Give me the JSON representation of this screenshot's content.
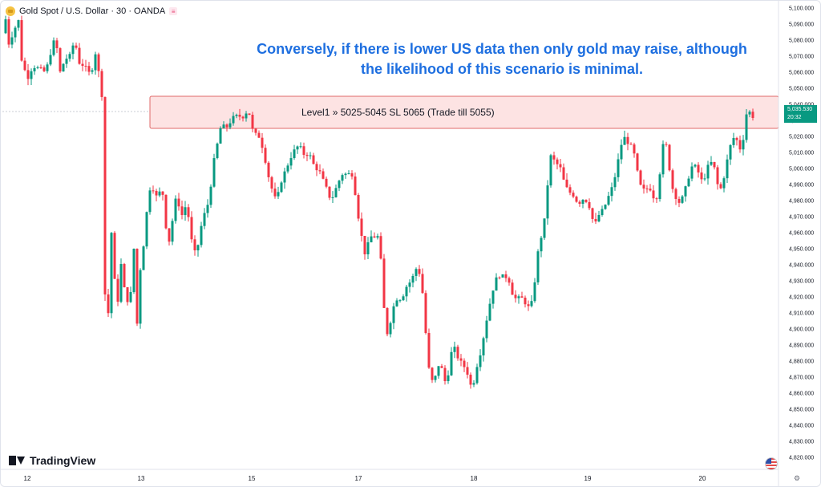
{
  "header": {
    "symbol_title": "Gold Spot / U.S. Dollar · 30 · OANDA"
  },
  "annotation": {
    "line1": "Conversely, if there is lower US data then only gold may raise, although",
    "line2": "the likelihood of this scenario is minimal."
  },
  "zone": {
    "label": "Level1 » 5025-5045 SL 5065 (Trade till 5055)",
    "low": 5025,
    "high": 5045
  },
  "price_tag": {
    "price": "5,035.530",
    "countdown": "20:32"
  },
  "logo": {
    "text": "TradingView"
  },
  "colors": {
    "up": "#089981",
    "down": "#f23645",
    "zone_fill": "#fde3e3",
    "zone_border": "#e06a6a",
    "annotation": "#1e6fe0",
    "price_tag": "#089981"
  },
  "chart_data": {
    "type": "candlestick",
    "title": "Gold Spot / U.S. Dollar · 30 · OANDA",
    "ylim": [
      4815,
      5102
    ],
    "y_ticks": [
      "5,100.000",
      "5,090.000",
      "5,080.000",
      "5,070.000",
      "5,060.000",
      "5,050.000",
      "5,040.000",
      "5,030.000",
      "5,020.000",
      "5,010.000",
      "5,000.000",
      "4,990.000",
      "4,980.000",
      "4,970.000",
      "4,960.000",
      "4,950.000",
      "4,940.000",
      "4,930.000",
      "4,920.000",
      "4,910.000",
      "4,900.000",
      "4,890.000",
      "4,880.000",
      "4,870.000",
      "4,860.000",
      "4,850.000",
      "4,840.000",
      "4,830.000",
      "4,820.000"
    ],
    "x_ticks": [
      "12",
      "13",
      "15",
      "17",
      "18",
      "19",
      "20"
    ],
    "last_price": 5035.53,
    "path": [
      [
        0,
        5080
      ],
      [
        6,
        5093
      ],
      [
        10,
        5078
      ],
      [
        18,
        5088
      ],
      [
        22,
        5092
      ],
      [
        26,
        5068
      ],
      [
        33,
        5056
      ],
      [
        40,
        5064
      ],
      [
        48,
        5062
      ],
      [
        56,
        5060
      ],
      [
        62,
        5072
      ],
      [
        68,
        5082
      ],
      [
        74,
        5060
      ],
      [
        80,
        5068
      ],
      [
        86,
        5070
      ],
      [
        92,
        5080
      ],
      [
        98,
        5066
      ],
      [
        104,
        5064
      ],
      [
        112,
        5058
      ],
      [
        118,
        5072
      ],
      [
        122,
        5060
      ],
      [
        126,
        5046
      ],
      [
        128,
        4975
      ],
      [
        131,
        4895
      ],
      [
        134,
        4910
      ],
      [
        138,
        4960
      ],
      [
        142,
        4930
      ],
      [
        146,
        4918
      ],
      [
        150,
        4940
      ],
      [
        154,
        4925
      ],
      [
        158,
        4918
      ],
      [
        162,
        4922
      ],
      [
        166,
        4950
      ],
      [
        169,
        4890
      ],
      [
        172,
        4930
      ],
      [
        176,
        4945
      ],
      [
        180,
        4960
      ],
      [
        184,
        4985
      ],
      [
        188,
        4990
      ],
      [
        192,
        4985
      ],
      [
        196,
        4980
      ],
      [
        200,
        4990
      ],
      [
        204,
        4978
      ],
      [
        208,
        4950
      ],
      [
        212,
        4960
      ],
      [
        216,
        4975
      ],
      [
        220,
        4985
      ],
      [
        224,
        4970
      ],
      [
        228,
        4972
      ],
      [
        232,
        4980
      ],
      [
        236,
        4960
      ],
      [
        240,
        4950
      ],
      [
        244,
        4945
      ],
      [
        248,
        4960
      ],
      [
        252,
        4968
      ],
      [
        256,
        4975
      ],
      [
        260,
        4980
      ],
      [
        264,
        5000
      ],
      [
        268,
        5010
      ],
      [
        272,
        5020
      ],
      [
        276,
        5030
      ],
      [
        280,
        5022
      ],
      [
        284,
        5030
      ],
      [
        288,
        5028
      ],
      [
        292,
        5035
      ],
      [
        296,
        5030
      ],
      [
        300,
        5035
      ],
      [
        304,
        5030
      ],
      [
        308,
        5040
      ],
      [
        312,
        5028
      ],
      [
        316,
        5020
      ],
      [
        320,
        5022
      ],
      [
        324,
        5018
      ],
      [
        328,
        5010
      ],
      [
        332,
        5000
      ],
      [
        336,
        4990
      ],
      [
        340,
        4985
      ],
      [
        344,
        4978
      ],
      [
        348,
        4990
      ],
      [
        352,
        4995
      ],
      [
        356,
        5000
      ],
      [
        360,
        5005
      ],
      [
        364,
        5010
      ],
      [
        368,
        5012
      ],
      [
        372,
        5015
      ],
      [
        376,
        5010
      ],
      [
        380,
        5008
      ],
      [
        384,
        5010
      ],
      [
        388,
        5005
      ],
      [
        392,
        5000
      ],
      [
        396,
        5000
      ],
      [
        400,
        4995
      ],
      [
        404,
        4990
      ],
      [
        408,
        4985
      ],
      [
        412,
        4980
      ],
      [
        416,
        4985
      ],
      [
        420,
        4990
      ],
      [
        424,
        4995
      ],
      [
        428,
        4998
      ],
      [
        432,
        4995
      ],
      [
        436,
        4998
      ],
      [
        440,
        4995
      ],
      [
        444,
        4975
      ],
      [
        448,
        4965
      ],
      [
        452,
        4950
      ],
      [
        456,
        4945
      ],
      [
        460,
        4960
      ],
      [
        464,
        4955
      ],
      [
        468,
        4960
      ],
      [
        472,
        4955
      ],
      [
        476,
        4930
      ],
      [
        480,
        4895
      ],
      [
        484,
        4900
      ],
      [
        488,
        4910
      ],
      [
        492,
        4918
      ],
      [
        496,
        4920
      ],
      [
        500,
        4918
      ],
      [
        504,
        4925
      ],
      [
        508,
        4928
      ],
      [
        512,
        4930
      ],
      [
        516,
        4935
      ],
      [
        520,
        4940
      ],
      [
        524,
        4930
      ],
      [
        528,
        4915
      ],
      [
        532,
        4880
      ],
      [
        536,
        4870
      ],
      [
        540,
        4865
      ],
      [
        544,
        4875
      ],
      [
        548,
        4880
      ],
      [
        552,
        4870
      ],
      [
        556,
        4865
      ],
      [
        560,
        4880
      ],
      [
        564,
        4890
      ],
      [
        568,
        4885
      ],
      [
        572,
        4880
      ],
      [
        576,
        4878
      ],
      [
        580,
        4875
      ],
      [
        584,
        4870
      ],
      [
        588,
        4860
      ],
      [
        592,
        4875
      ],
      [
        596,
        4880
      ],
      [
        600,
        4890
      ],
      [
        604,
        4900
      ],
      [
        608,
        4912
      ],
      [
        612,
        4920
      ],
      [
        616,
        4930
      ],
      [
        620,
        4932
      ],
      [
        624,
        4935
      ],
      [
        628,
        4930
      ],
      [
        632,
        4935
      ],
      [
        636,
        4925
      ],
      [
        640,
        4920
      ],
      [
        644,
        4918
      ],
      [
        648,
        4920
      ],
      [
        652,
        4918
      ],
      [
        656,
        4915
      ],
      [
        660,
        4912
      ],
      [
        664,
        4920
      ],
      [
        668,
        4940
      ],
      [
        672,
        4955
      ],
      [
        676,
        4960
      ],
      [
        680,
        4975
      ],
      [
        684,
        5005
      ],
      [
        688,
        5010
      ],
      [
        692,
        5000
      ],
      [
        696,
        5005
      ],
      [
        700,
        4995
      ],
      [
        704,
        4990
      ],
      [
        708,
        4985
      ],
      [
        712,
        4985
      ],
      [
        716,
        4982
      ],
      [
        720,
        4978
      ],
      [
        724,
        4980
      ],
      [
        728,
        4982
      ],
      [
        732,
        4978
      ],
      [
        736,
        4975
      ],
      [
        740,
        4962
      ],
      [
        744,
        4970
      ],
      [
        748,
        4972
      ],
      [
        752,
        4975
      ],
      [
        756,
        4980
      ],
      [
        760,
        4985
      ],
      [
        764,
        4990
      ],
      [
        768,
        5000
      ],
      [
        772,
        5010
      ],
      [
        776,
        5020
      ],
      [
        780,
        5018
      ],
      [
        784,
        5015
      ],
      [
        788,
        5012
      ],
      [
        792,
        5005
      ],
      [
        796,
        4990
      ],
      [
        800,
        4988
      ],
      [
        804,
        4985
      ],
      [
        808,
        4990
      ],
      [
        812,
        4985
      ],
      [
        816,
        4980
      ],
      [
        820,
        4985
      ],
      [
        824,
        5010
      ],
      [
        828,
        5018
      ],
      [
        832,
        5010
      ],
      [
        836,
        4990
      ],
      [
        840,
        4985
      ],
      [
        844,
        4980
      ],
      [
        848,
        4978
      ],
      [
        852,
        4985
      ],
      [
        856,
        4990
      ],
      [
        860,
        5000
      ],
      [
        864,
        5002
      ],
      [
        868,
        5000
      ],
      [
        872,
        4995
      ],
      [
        876,
        4990
      ],
      [
        880,
        5000
      ],
      [
        884,
        5002
      ],
      [
        888,
        5005
      ],
      [
        892,
        4995
      ],
      [
        896,
        4985
      ],
      [
        900,
        4990
      ],
      [
        904,
        5000
      ],
      [
        908,
        5010
      ],
      [
        912,
        5018
      ],
      [
        916,
        5020
      ],
      [
        920,
        5015
      ],
      [
        924,
        5010
      ],
      [
        928,
        5028
      ],
      [
        932,
        5040
      ],
      [
        936,
        5030
      ],
      [
        940,
        5035
      ]
    ]
  }
}
